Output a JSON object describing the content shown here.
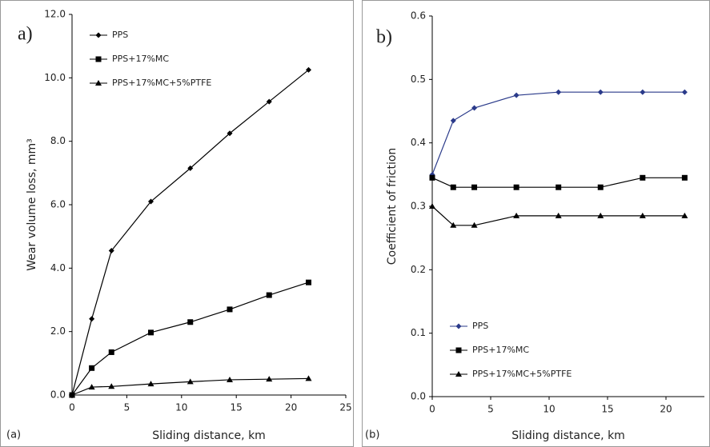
{
  "chart_data": [
    {
      "type": "line",
      "panel_label": "a)",
      "caption": "(a)",
      "xlabel": "Sliding distance, km",
      "ylabel": "Wear volume loss, mm³",
      "xlim": [
        0,
        25
      ],
      "xticks": [
        0,
        5,
        10,
        15,
        20,
        25
      ],
      "ylim": [
        0,
        12
      ],
      "yticks": [
        {
          "value": 0,
          "label": "0.0"
        },
        {
          "value": 2,
          "label": "2.0"
        },
        {
          "value": 4,
          "label": "4.0"
        },
        {
          "value": 6,
          "label": "6.0"
        },
        {
          "value": 8,
          "label": "8.0"
        },
        {
          "value": 10,
          "label": "10.0"
        },
        {
          "value": 12,
          "label": "12.0"
        }
      ],
      "legend": "upper left",
      "x": [
        0,
        1.8,
        3.6,
        7.2,
        10.8,
        14.4,
        18,
        21.6
      ],
      "series": [
        {
          "name": "PPS",
          "color": "#000000",
          "marker": "diamond",
          "values": [
            0,
            2.4,
            4.55,
            6.1,
            7.15,
            8.25,
            9.25,
            10.25
          ]
        },
        {
          "name": "PPS+17%MC",
          "color": "#000000",
          "marker": "square",
          "values": [
            0,
            0.85,
            1.35,
            1.97,
            2.3,
            2.7,
            3.15,
            3.55
          ]
        },
        {
          "name": "PPS+17%MC+5%PTFE",
          "color": "#000000",
          "marker": "triangle",
          "values": [
            0,
            0.25,
            0.27,
            0.35,
            0.42,
            0.48,
            0.5,
            0.52
          ]
        }
      ]
    },
    {
      "type": "line",
      "panel_label": "b)",
      "caption": "(b)",
      "xlabel": "Sliding distance, km",
      "ylabel": "Coefficient of friction",
      "xlim": [
        0,
        25
      ],
      "xticks": [
        0,
        5,
        10,
        15,
        20,
        25
      ],
      "ylim": [
        0,
        0.6
      ],
      "yticks": [
        {
          "value": 0,
          "label": "0.0"
        },
        0.1,
        0.2,
        0.3,
        0.4,
        0.5,
        0.6
      ],
      "legend": "lower left",
      "x": [
        0,
        1.8,
        3.6,
        7.2,
        10.8,
        14.4,
        18,
        21.6
      ],
      "series": [
        {
          "name": "PPS",
          "color": "#2a3a8a",
          "marker": "diamond",
          "values": [
            0.35,
            0.435,
            0.455,
            0.475,
            0.48,
            0.48,
            0.48,
            0.48
          ]
        },
        {
          "name": "PPS+17%MC",
          "color": "#000000",
          "marker": "square",
          "values": [
            0.345,
            0.33,
            0.33,
            0.33,
            0.33,
            0.33,
            0.345,
            0.345
          ]
        },
        {
          "name": "PPS+17%MC+5%PTFE",
          "color": "#000000",
          "marker": "triangle",
          "values": [
            0.3,
            0.27,
            0.27,
            0.285,
            0.285,
            0.285,
            0.285,
            0.285
          ]
        }
      ]
    }
  ]
}
